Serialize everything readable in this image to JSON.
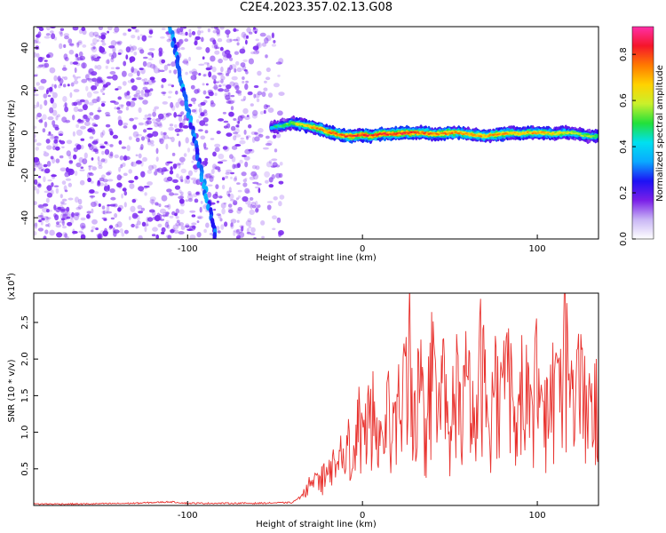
{
  "title": "C2E4.2023.357.02.13.G08",
  "colors": {
    "spectrogram_speckle": "#7d2cf0",
    "snr_line": "#e8322e",
    "colormap_stops": [
      "#ffffff",
      "#c9b6f5",
      "#7a1fe8",
      "#1d12f5",
      "#0aa9ff",
      "#00e0f0",
      "#22e03a",
      "#c9f02c",
      "#ffd200",
      "#ff7a00",
      "#f5162a",
      "#ff2fa8"
    ]
  },
  "chart_data": [
    {
      "type": "heatmap",
      "xlabel": "Height of straight line (km)",
      "ylabel": "Frequency (Hz)",
      "xlim": [
        -188,
        135
      ],
      "ylim": [
        -50,
        50
      ],
      "xticks": [
        "-100",
        "0",
        "100"
      ],
      "xtick_values": [
        -100,
        0,
        100
      ],
      "yticks": [
        "-40",
        "-20",
        "0",
        "20",
        "40"
      ],
      "ytick_values": [
        -40,
        -20,
        0,
        20,
        40
      ],
      "colorbar": {
        "label": "Normalized spectral amplitude",
        "range": [
          0,
          0.92
        ],
        "ticks": [
          "0.0",
          "0.2",
          "0.4",
          "0.6",
          "0.8"
        ],
        "tick_values": [
          0,
          0.2,
          0.4,
          0.6,
          0.8
        ]
      },
      "noise_region_x": [
        -188,
        -46
      ],
      "diagonal_streak": {
        "x_start": -110,
        "y_start": 50,
        "x_end": -84,
        "y_end": -50
      },
      "signal_band": {
        "x": [
          -52,
          -45,
          -40,
          -35,
          -30,
          -25,
          -20,
          -15,
          -10,
          -5,
          0,
          5,
          10,
          15,
          20,
          25,
          30,
          35,
          40,
          45,
          50,
          55,
          60,
          65,
          70,
          75,
          80,
          85,
          90,
          95,
          100,
          105,
          110,
          115,
          120,
          125,
          130,
          135
        ],
        "center_hz": [
          2.5,
          3.5,
          4.5,
          4.0,
          3.0,
          2.0,
          0.5,
          -0.5,
          -1.5,
          -1.5,
          -1.0,
          -1.5,
          -0.5,
          -0.5,
          -0.5,
          0.0,
          0.0,
          0.0,
          -0.5,
          -0.5,
          0.0,
          0.0,
          -0.5,
          -1.0,
          -1.5,
          -1.0,
          -0.5,
          0.0,
          -0.5,
          0.0,
          0.0,
          0.0,
          -0.5,
          0.0,
          0.0,
          -1.0,
          -1.5,
          -1.5
        ],
        "peak_amplitude": [
          0.45,
          0.55,
          0.6,
          0.7,
          0.75,
          0.8,
          0.82,
          0.85,
          0.85,
          0.9,
          0.9,
          0.88,
          0.9,
          0.88,
          0.9,
          0.88,
          0.85,
          0.85,
          0.82,
          0.8,
          0.82,
          0.8,
          0.78,
          0.78,
          0.75,
          0.78,
          0.8,
          0.75,
          0.72,
          0.75,
          0.78,
          0.72,
          0.7,
          0.68,
          0.65,
          0.62,
          0.6,
          0.55
        ]
      }
    },
    {
      "type": "line",
      "xlabel": "Height of straight line (km)",
      "ylabel": "SNR (10 * v/v)",
      "y_multiplier": "(x10",
      "y_multiplier_exp": "4",
      "xlim": [
        -188,
        135
      ],
      "ylim": [
        0,
        2.9
      ],
      "xticks": [
        "-100",
        "0",
        "100"
      ],
      "xtick_values": [
        -100,
        0,
        100
      ],
      "yticks": [
        "0.5",
        "1.0",
        "1.5",
        "2.0",
        "2.5"
      ],
      "ytick_values": [
        0.5,
        1.0,
        1.5,
        2.0,
        2.5
      ],
      "series": [
        {
          "x": [
            -188,
            -160,
            -130,
            -110,
            -100,
            -80,
            -60,
            -40,
            -34,
            -32,
            -30,
            -28,
            -25,
            -22,
            -20,
            -18,
            -15,
            -12,
            -10,
            -8,
            -5,
            -2,
            0,
            3,
            6,
            10,
            14,
            18,
            22,
            25,
            27,
            30,
            33,
            36,
            40,
            43,
            46,
            50,
            53,
            56,
            60,
            64,
            68,
            72,
            76,
            80,
            84,
            88,
            92,
            96,
            100,
            104,
            108,
            112,
            116,
            120,
            124,
            128,
            132,
            135
          ],
          "y": [
            0.02,
            0.02,
            0.03,
            0.05,
            0.03,
            0.03,
            0.03,
            0.04,
            0.15,
            0.45,
            0.3,
            0.5,
            0.35,
            0.6,
            0.45,
            0.8,
            0.5,
            0.9,
            0.7,
            1.25,
            0.8,
            1.6,
            1.1,
            1.5,
            1.8,
            1.1,
            1.7,
            1.3,
            1.9,
            2.2,
            2.9,
            1.5,
            2.4,
            1.2,
            2.6,
            1.4,
            2.2,
            1.0,
            2.5,
            1.6,
            2.3,
            1.3,
            2.7,
            1.5,
            2.2,
            1.8,
            2.6,
            1.2,
            2.4,
            1.6,
            2.6,
            1.4,
            2.3,
            1.9,
            2.8,
            1.6,
            2.5,
            1.7,
            2.0,
            1.9
          ]
        }
      ]
    }
  ]
}
